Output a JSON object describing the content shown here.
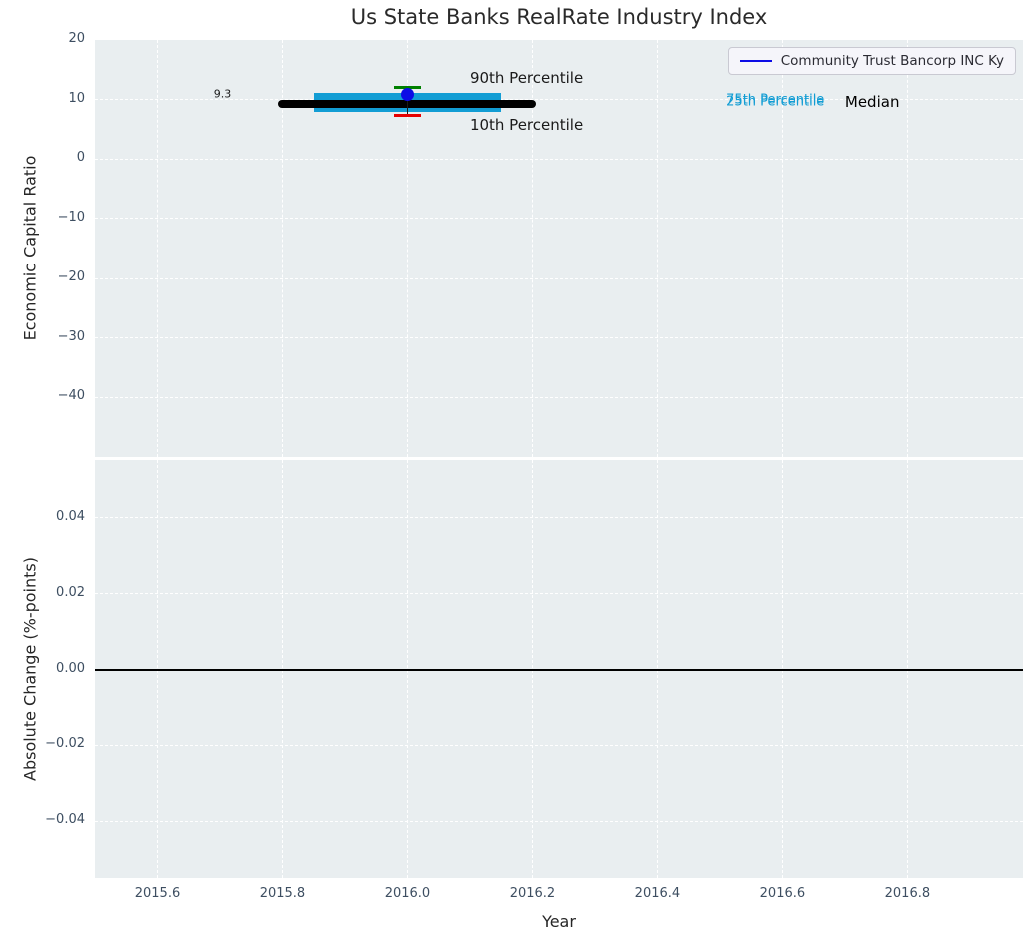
{
  "title": "Us State Banks RealRate Industry Index",
  "legend": {
    "label": "Community Trust Bancorp INC Ky",
    "line_color": "#0c0ce6"
  },
  "colors": {
    "plot_bg": "#e9eef0",
    "grid": "#ffffff",
    "tick_label": "#3d4e61",
    "axis_label": "#262626",
    "median": "#000000",
    "iqr_bar": "#129dd4",
    "p90_cap": "#008000",
    "p10_cap": "#e60000",
    "whisker": "#1a1a1a",
    "company_marker": "#0c0ce6",
    "zero_line": "#000000"
  },
  "chart_data": [
    {
      "type": "box-line",
      "title": "Us State Banks RealRate Industry Index",
      "ylabel": "Economic Capital Ratio",
      "xlabel": "",
      "xlim": [
        2015.5,
        2016.985
      ],
      "ylim": [
        -50,
        20
      ],
      "xtick_values": [
        2015.6,
        2015.8,
        2016.0,
        2016.2,
        2016.4,
        2016.6,
        2016.8
      ],
      "ytick_values": [
        20,
        10,
        0,
        -10,
        -20,
        -30,
        -40
      ],
      "ytick_labels": [
        "20",
        "10",
        "0",
        "−10",
        "−20",
        "−30",
        "−40"
      ],
      "grid": true,
      "legend_position": "top-right",
      "median": {
        "y": 9.3,
        "x_start": 2015.8,
        "x_end": 2016.2,
        "label": "Median"
      },
      "iqr": {
        "p25": 7.9,
        "p75": 11.1,
        "x_start": 2015.85,
        "x_end": 2016.15
      },
      "whisker": {
        "x": 2016.0,
        "p10": 7.4,
        "p90": 12.1
      },
      "company_point": {
        "name": "Community Trust Bancorp INC Ky",
        "x": 2016.0,
        "y": 10.9
      },
      "annotations": [
        {
          "text": "9.3",
          "x": 2015.69,
          "y": 11.0,
          "color": "#1a1a1a",
          "size": 11
        },
        {
          "text": "90th Percentile",
          "x": 2016.1,
          "y": 13.6,
          "color": "#1a1a1a",
          "size": 15
        },
        {
          "text": "10th Percentile",
          "x": 2016.1,
          "y": 5.7,
          "color": "#1a1a1a",
          "size": 15
        },
        {
          "text": "75th Percentile",
          "x": 2016.51,
          "y": 9.9,
          "color": "#129dd4",
          "size": 13
        },
        {
          "text": "25th Percentile",
          "x": 2016.51,
          "y": 9.66,
          "color": "#129dd4",
          "size": 13
        },
        {
          "text": "Median",
          "x": 2016.7,
          "y": 9.6,
          "color": "#000000",
          "size": 15
        }
      ]
    },
    {
      "type": "line",
      "ylabel": "Absolute Change (%-points)",
      "xlabel": "Year",
      "xlim": [
        2015.5,
        2016.985
      ],
      "ylim": [
        -0.055,
        0.0553
      ],
      "xtick_values": [
        2015.6,
        2015.8,
        2016.0,
        2016.2,
        2016.4,
        2016.6,
        2016.8
      ],
      "xtick_labels": [
        "2015.6",
        "2015.8",
        "2016.0",
        "2016.2",
        "2016.4",
        "2016.6",
        "2016.8"
      ],
      "ytick_values": [
        0.04,
        0.02,
        0.0,
        -0.02,
        -0.04
      ],
      "ytick_labels": [
        "0.04",
        "0.02",
        "0.00",
        "−0.02",
        "−0.04"
      ],
      "grid": true,
      "zero_line": 0.0,
      "series": []
    }
  ]
}
